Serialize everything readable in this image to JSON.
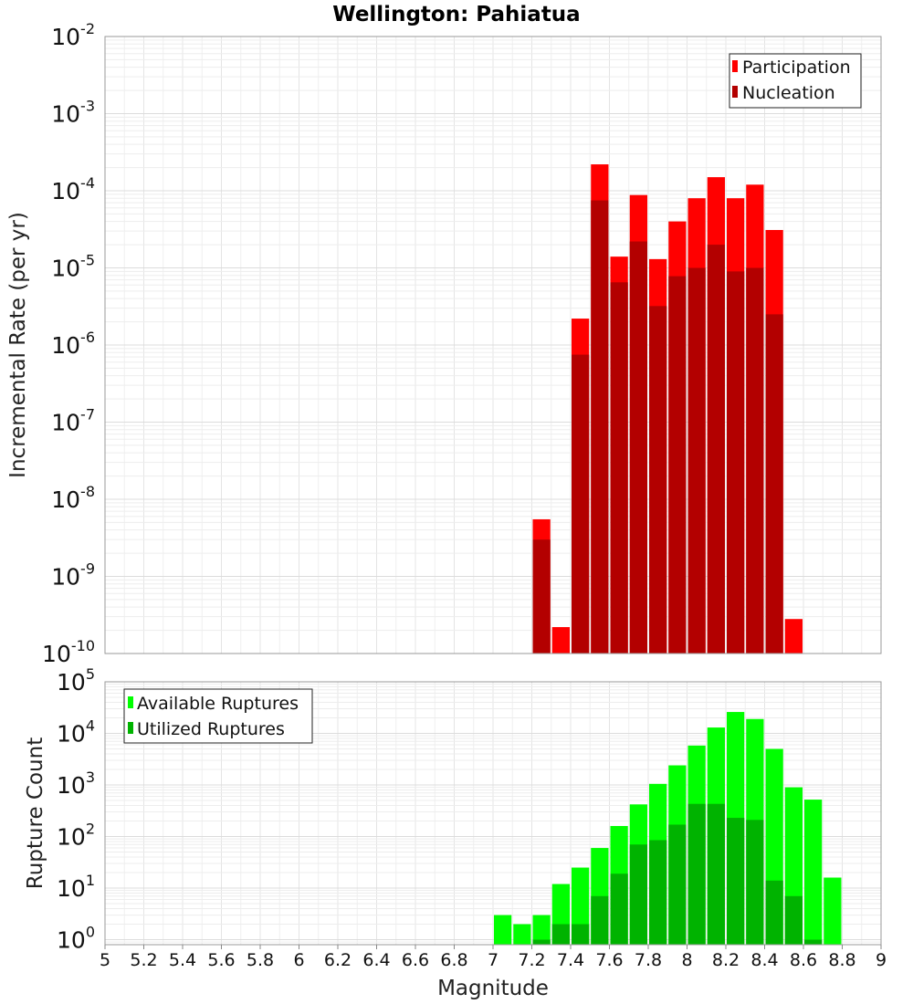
{
  "chart_data": [
    {
      "type": "bar",
      "title": "Wellington: Pahiatua",
      "ylabel": "Incremental Rate (per yr)",
      "xlabel": "",
      "yscale": "log",
      "ylim": [
        1e-10,
        0.01
      ],
      "xlim": [
        5,
        9
      ],
      "grid": true,
      "legend_position": "top-right",
      "categories": [
        7.25,
        7.35,
        7.45,
        7.55,
        7.65,
        7.75,
        7.85,
        7.95,
        8.05,
        8.15,
        8.25,
        8.35,
        8.45,
        8.55
      ],
      "series": [
        {
          "name": "Participation",
          "color": "#ff0000",
          "values": [
            5.5e-09,
            2.2e-10,
            2.2e-06,
            0.00022,
            1.4e-05,
            8.8e-05,
            1.3e-05,
            4e-05,
            8e-05,
            0.00015,
            8e-05,
            0.00012,
            3.1e-05,
            2.8e-10
          ]
        },
        {
          "name": "Nucleation",
          "color": "#b30000",
          "values": [
            3e-09,
            null,
            7.5e-07,
            7.5e-05,
            6.5e-06,
            2.2e-05,
            3.2e-06,
            7.8e-06,
            1e-05,
            2e-05,
            9e-06,
            1e-05,
            2.5e-06,
            null
          ]
        }
      ]
    },
    {
      "type": "bar",
      "title": "",
      "ylabel": "Rupture Count",
      "xlabel": "Magnitude",
      "yscale": "log",
      "ylim": [
        0.8,
        100000.0
      ],
      "xlim": [
        5,
        9
      ],
      "grid": true,
      "legend_position": "top-left",
      "categories": [
        7.05,
        7.15,
        7.25,
        7.35,
        7.45,
        7.55,
        7.65,
        7.75,
        7.85,
        7.95,
        8.05,
        8.15,
        8.25,
        8.35,
        8.45,
        8.55,
        8.65,
        8.75
      ],
      "series": [
        {
          "name": "Available Ruptures",
          "color": "#00ff00",
          "values": [
            3,
            2,
            3,
            12,
            25,
            60,
            160,
            420,
            1050,
            2400,
            5800,
            13000,
            26000,
            19000,
            5000,
            900,
            520,
            16
          ]
        },
        {
          "name": "Utilized Ruptures",
          "color": "#00b300",
          "values": [
            null,
            null,
            1,
            2,
            2,
            7,
            19,
            70,
            85,
            170,
            430,
            430,
            230,
            210,
            14,
            7,
            1,
            null
          ]
        }
      ]
    }
  ],
  "x_ticks": [
    "5",
    "5.2",
    "5.4",
    "5.6",
    "5.8",
    "6",
    "6.2",
    "6.4",
    "6.6",
    "6.8",
    "7",
    "7.2",
    "7.4",
    "7.6",
    "7.8",
    "8",
    "8.2",
    "8.4",
    "8.6",
    "8.8",
    "9"
  ],
  "top_y_ticks": [
    {
      "base": "10",
      "exp": "-10"
    },
    {
      "base": "10",
      "exp": "-9"
    },
    {
      "base": "10",
      "exp": "-8"
    },
    {
      "base": "10",
      "exp": "-7"
    },
    {
      "base": "10",
      "exp": "-6"
    },
    {
      "base": "10",
      "exp": "-5"
    },
    {
      "base": "10",
      "exp": "-4"
    },
    {
      "base": "10",
      "exp": "-3"
    },
    {
      "base": "10",
      "exp": "-2"
    }
  ],
  "bottom_y_ticks": [
    {
      "base": "10",
      "exp": "0"
    },
    {
      "base": "10",
      "exp": "1"
    },
    {
      "base": "10",
      "exp": "2"
    },
    {
      "base": "10",
      "exp": "3"
    },
    {
      "base": "10",
      "exp": "4"
    },
    {
      "base": "10",
      "exp": "5"
    }
  ]
}
